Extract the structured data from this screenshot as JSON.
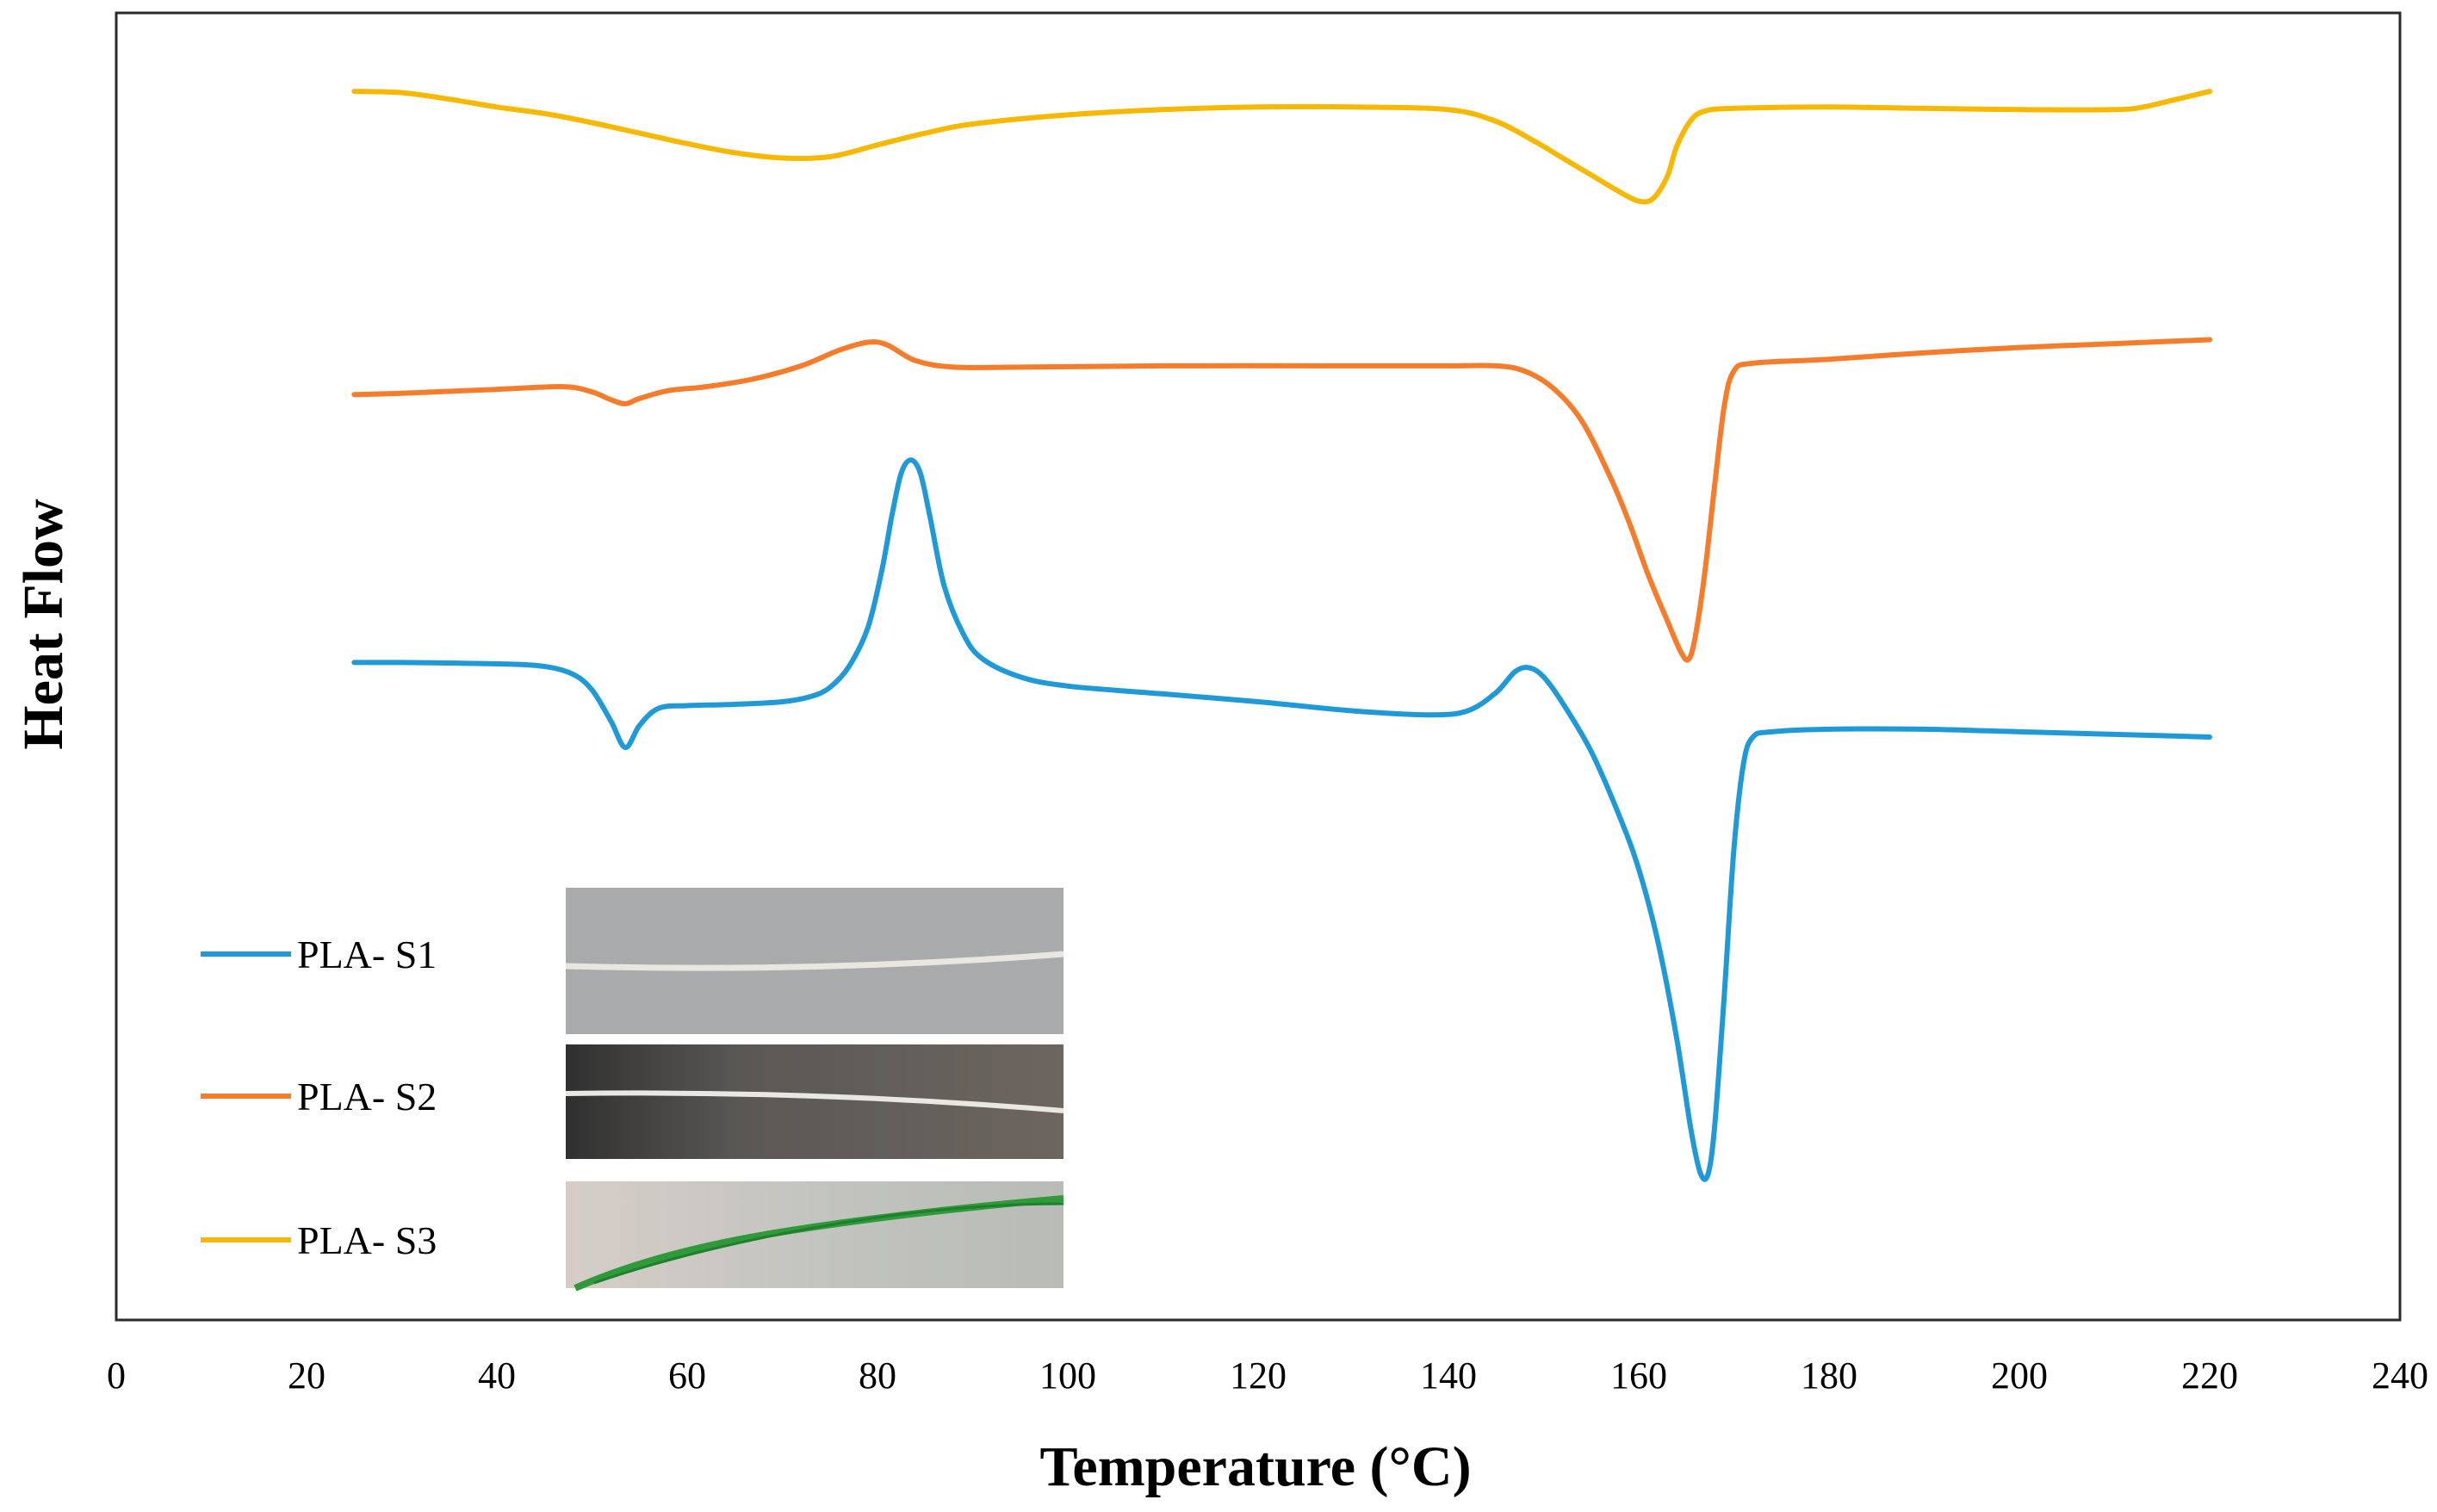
{
  "chart_data": {
    "type": "line",
    "title": "",
    "xlabel": "Temperature (°C)",
    "ylabel": "Heat Flow",
    "xlim": [
      0,
      240
    ],
    "ylim": [
      0,
      100
    ],
    "xticks": [
      0,
      20,
      40,
      60,
      80,
      100,
      120,
      140,
      160,
      180,
      200,
      220,
      240
    ],
    "y_tick_labels_shown": false,
    "grid": false,
    "legend_position": "bottom-left",
    "legend_has_sample_photos": true,
    "series": [
      {
        "name": "PLA- S1",
        "color": "#1f9ad6",
        "points": [
          [
            25,
            50.3
          ],
          [
            30,
            50.3
          ],
          [
            40,
            50.2
          ],
          [
            45,
            50.0
          ],
          [
            48,
            49.4
          ],
          [
            50,
            48.2
          ],
          [
            52,
            45.8
          ],
          [
            53.5,
            43.8
          ],
          [
            55,
            45.5
          ],
          [
            57,
            46.8
          ],
          [
            60,
            47.0
          ],
          [
            65,
            47.1
          ],
          [
            70,
            47.3
          ],
          [
            73,
            47.7
          ],
          [
            75,
            48.4
          ],
          [
            77,
            50.0
          ],
          [
            79,
            53.0
          ],
          [
            80.5,
            57.5
          ],
          [
            81.5,
            61.5
          ],
          [
            82.5,
            64.8
          ],
          [
            83.5,
            65.8
          ],
          [
            84.5,
            64.8
          ],
          [
            85.5,
            61.5
          ],
          [
            87,
            56.2
          ],
          [
            89,
            52.5
          ],
          [
            91,
            50.6
          ],
          [
            95,
            49.2
          ],
          [
            100,
            48.5
          ],
          [
            110,
            47.9
          ],
          [
            120,
            47.3
          ],
          [
            130,
            46.6
          ],
          [
            138,
            46.3
          ],
          [
            142,
            46.6
          ],
          [
            145,
            48.0
          ],
          [
            147,
            49.6
          ],
          [
            148.5,
            49.9
          ],
          [
            150,
            49.2
          ],
          [
            152,
            47.2
          ],
          [
            155,
            43.5
          ],
          [
            158,
            38.5
          ],
          [
            160,
            34.5
          ],
          [
            162,
            29.0
          ],
          [
            164,
            21.5
          ],
          [
            165.5,
            14.5
          ],
          [
            166.5,
            11.2
          ],
          [
            167.3,
            11.2
          ],
          [
            168,
            15.0
          ],
          [
            169,
            25.0
          ],
          [
            170,
            36.0
          ],
          [
            171,
            42.5
          ],
          [
            172,
            44.6
          ],
          [
            174,
            45.0
          ],
          [
            180,
            45.2
          ],
          [
            190,
            45.2
          ],
          [
            200,
            45.0
          ],
          [
            210,
            44.8
          ],
          [
            220,
            44.6
          ]
        ]
      },
      {
        "name": "PLA- S2",
        "color": "#f47c2a",
        "points": [
          [
            25,
            70.8
          ],
          [
            30,
            70.9
          ],
          [
            40,
            71.2
          ],
          [
            47,
            71.4
          ],
          [
            50,
            71.0
          ],
          [
            52,
            70.4
          ],
          [
            53.5,
            70.1
          ],
          [
            55,
            70.5
          ],
          [
            58,
            71.1
          ],
          [
            62,
            71.4
          ],
          [
            67,
            72.0
          ],
          [
            72,
            73.0
          ],
          [
            76,
            74.2
          ],
          [
            79,
            74.8
          ],
          [
            81,
            74.6
          ],
          [
            84,
            73.4
          ],
          [
            88,
            72.9
          ],
          [
            95,
            72.9
          ],
          [
            110,
            73.0
          ],
          [
            130,
            73.0
          ],
          [
            140,
            73.0
          ],
          [
            145,
            73.0
          ],
          [
            148,
            72.6
          ],
          [
            151,
            71.3
          ],
          [
            154,
            68.8
          ],
          [
            157,
            64.5
          ],
          [
            159,
            61.0
          ],
          [
            161,
            57.0
          ],
          [
            163,
            53.5
          ],
          [
            164.5,
            51.0
          ],
          [
            165.3,
            50.6
          ],
          [
            166,
            52.5
          ],
          [
            167,
            57.5
          ],
          [
            168,
            64.0
          ],
          [
            169,
            70.0
          ],
          [
            170,
            72.6
          ],
          [
            172,
            73.2
          ],
          [
            180,
            73.5
          ],
          [
            190,
            74.0
          ],
          [
            200,
            74.4
          ],
          [
            210,
            74.7
          ],
          [
            220,
            75.0
          ]
        ]
      },
      {
        "name": "PLA- S3",
        "color": "#f6b800",
        "points": [
          [
            25,
            94.0
          ],
          [
            30,
            93.9
          ],
          [
            35,
            93.4
          ],
          [
            40,
            92.8
          ],
          [
            45,
            92.3
          ],
          [
            50,
            91.6
          ],
          [
            55,
            90.8
          ],
          [
            60,
            90.0
          ],
          [
            65,
            89.3
          ],
          [
            70,
            88.9
          ],
          [
            75,
            89.0
          ],
          [
            80,
            89.9
          ],
          [
            85,
            90.8
          ],
          [
            90,
            91.5
          ],
          [
            100,
            92.2
          ],
          [
            110,
            92.6
          ],
          [
            120,
            92.8
          ],
          [
            130,
            92.8
          ],
          [
            140,
            92.6
          ],
          [
            145,
            91.7
          ],
          [
            149,
            90.2
          ],
          [
            152,
            88.9
          ],
          [
            155,
            87.6
          ],
          [
            158,
            86.3
          ],
          [
            160,
            85.6
          ],
          [
            161.5,
            85.8
          ],
          [
            163,
            87.5
          ],
          [
            164,
            89.8
          ],
          [
            165.5,
            91.8
          ],
          [
            167,
            92.5
          ],
          [
            170,
            92.7
          ],
          [
            180,
            92.8
          ],
          [
            190,
            92.7
          ],
          [
            200,
            92.6
          ],
          [
            210,
            92.6
          ],
          [
            213,
            92.8
          ],
          [
            216,
            93.3
          ],
          [
            220,
            94.0
          ]
        ]
      }
    ]
  }
}
